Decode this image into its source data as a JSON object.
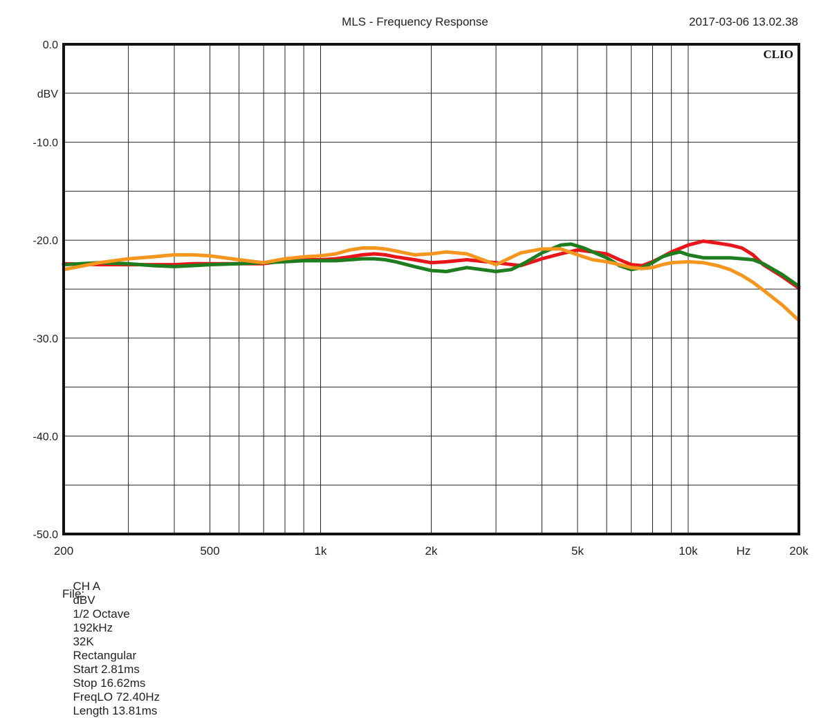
{
  "header": {
    "title": "MLS - Frequency Response",
    "timestamp": "2017-03-06 13.02.38"
  },
  "brand": {
    "logo": "CLIO"
  },
  "footer": {
    "settings": [
      "CH A",
      "dBV",
      "1/2 Octave",
      "192kHz",
      "32K",
      "Rectangular",
      "Start 2.81ms",
      "Stop 16.62ms",
      "FreqLO 72.40Hz",
      "Length 13.81ms"
    ],
    "file_label": "File:"
  },
  "chart_data": {
    "type": "line",
    "title": "MLS - Frequency Response",
    "x_scale": "log",
    "xlim": [
      200,
      20000
    ],
    "ylim": [
      -50,
      0
    ],
    "xunit": "Hz",
    "yunit": "dBV",
    "grid": true,
    "x_ticks": [
      {
        "value": 200,
        "label": "200"
      },
      {
        "value": 500,
        "label": "500"
      },
      {
        "value": 1000,
        "label": "1k"
      },
      {
        "value": 2000,
        "label": "2k"
      },
      {
        "value": 5000,
        "label": "5k"
      },
      {
        "value": 10000,
        "label": "10k"
      },
      {
        "value": 20000,
        "label": "20k"
      }
    ],
    "x_unit_tick": {
      "value": 14142,
      "label": "Hz"
    },
    "y_ticks": [
      {
        "value": 0,
        "label": "0.0"
      },
      {
        "value": -10,
        "label": "-10.0"
      },
      {
        "value": -20,
        "label": "-20.0"
      },
      {
        "value": -30,
        "label": "-30.0"
      },
      {
        "value": -40,
        "label": "-40.0"
      },
      {
        "value": -50,
        "label": "-50.0"
      }
    ],
    "y_unit_tick": {
      "value": -5,
      "label": "dBV"
    },
    "series": [
      {
        "color": "#e8161a",
        "x": [
          200,
          250,
          300,
          350,
          400,
          450,
          500,
          600,
          700,
          800,
          900,
          1000,
          1100,
          1200,
          1300,
          1400,
          1500,
          1600,
          1800,
          2000,
          2200,
          2500,
          3000,
          3500,
          4000,
          4500,
          5000,
          5500,
          6000,
          6500,
          7000,
          7500,
          8000,
          8500,
          9000,
          10000,
          11000,
          12000,
          13000,
          14000,
          15000,
          16000,
          18000,
          20000
        ],
        "y": [
          -22.4,
          -22.5,
          -22.5,
          -22.5,
          -22.5,
          -22.4,
          -22.4,
          -22.4,
          -22.4,
          -22.1,
          -22.0,
          -22.0,
          -21.9,
          -21.7,
          -21.5,
          -21.4,
          -21.5,
          -21.7,
          -22.0,
          -22.3,
          -22.2,
          -22.0,
          -22.3,
          -22.6,
          -21.9,
          -21.4,
          -21.0,
          -21.2,
          -21.4,
          -22.0,
          -22.5,
          -22.6,
          -22.2,
          -21.7,
          -21.2,
          -20.5,
          -20.1,
          -20.3,
          -20.5,
          -20.8,
          -21.5,
          -22.5,
          -23.7,
          -24.9
        ]
      },
      {
        "color": "#1e7d1e",
        "x": [
          200,
          250,
          300,
          350,
          400,
          450,
          500,
          600,
          700,
          800,
          900,
          1000,
          1100,
          1200,
          1300,
          1400,
          1500,
          1600,
          1800,
          2000,
          2200,
          2500,
          3000,
          3300,
          3600,
          4000,
          4500,
          4800,
          5200,
          5500,
          6000,
          6500,
          7000,
          7500,
          8000,
          8500,
          9000,
          9500,
          10000,
          11000,
          12000,
          13000,
          14000,
          15000,
          16000,
          18000,
          20000
        ],
        "y": [
          -22.5,
          -22.3,
          -22.4,
          -22.6,
          -22.7,
          -22.6,
          -22.5,
          -22.4,
          -22.3,
          -22.2,
          -22.1,
          -22.1,
          -22.1,
          -22.0,
          -21.9,
          -21.9,
          -22.0,
          -22.2,
          -22.7,
          -23.1,
          -23.2,
          -22.8,
          -23.2,
          -23.0,
          -22.3,
          -21.3,
          -20.5,
          -20.4,
          -20.8,
          -21.2,
          -21.8,
          -22.6,
          -23.0,
          -22.8,
          -22.3,
          -21.7,
          -21.4,
          -21.2,
          -21.5,
          -21.8,
          -21.8,
          -21.8,
          -21.9,
          -22.0,
          -22.4,
          -23.5,
          -24.7
        ]
      },
      {
        "color": "#f7961e",
        "x": [
          200,
          250,
          300,
          350,
          400,
          450,
          500,
          600,
          700,
          800,
          900,
          1000,
          1100,
          1200,
          1300,
          1400,
          1500,
          1600,
          1800,
          2000,
          2200,
          2500,
          3000,
          3500,
          4000,
          4500,
          5000,
          5500,
          6000,
          6500,
          7000,
          7500,
          8000,
          8500,
          9000,
          10000,
          11000,
          12000,
          13000,
          14000,
          15000,
          16000,
          18000,
          20000
        ],
        "y": [
          -23.0,
          -22.3,
          -21.9,
          -21.7,
          -21.5,
          -21.5,
          -21.6,
          -22.0,
          -22.3,
          -21.9,
          -21.7,
          -21.6,
          -21.4,
          -21.0,
          -20.8,
          -20.8,
          -20.9,
          -21.1,
          -21.5,
          -21.4,
          -21.2,
          -21.4,
          -22.5,
          -21.3,
          -20.9,
          -20.9,
          -21.5,
          -22.0,
          -22.2,
          -22.5,
          -22.8,
          -22.9,
          -22.8,
          -22.5,
          -22.3,
          -22.2,
          -22.3,
          -22.6,
          -23.0,
          -23.6,
          -24.3,
          -25.1,
          -26.6,
          -28.2
        ]
      }
    ]
  }
}
